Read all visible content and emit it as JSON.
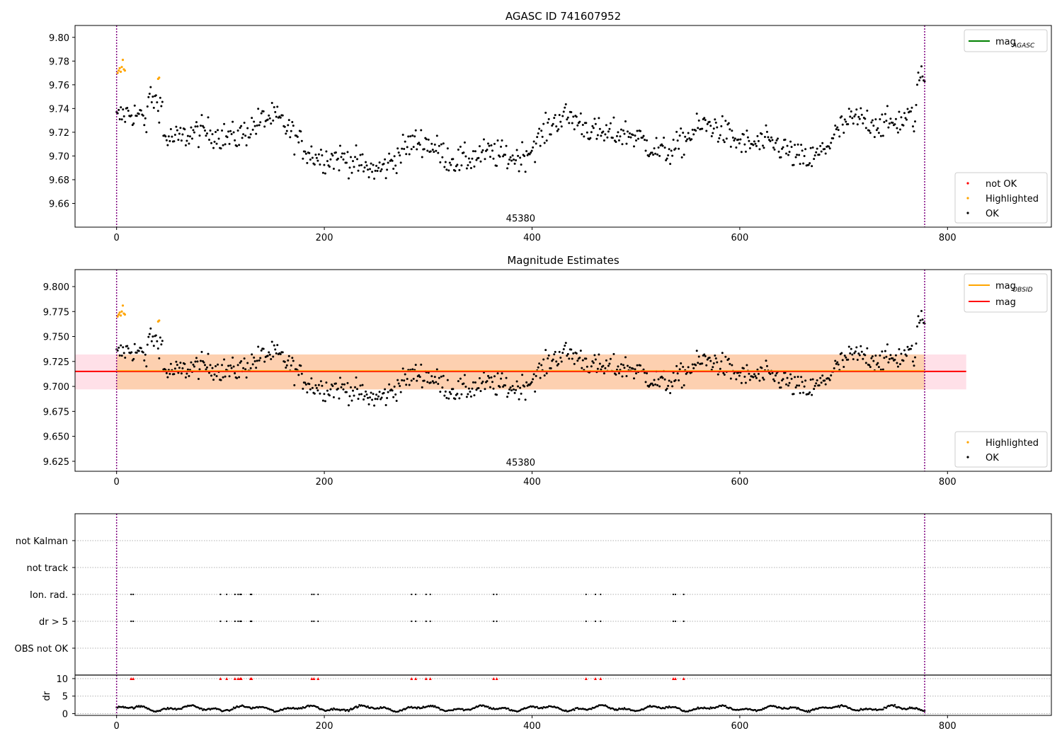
{
  "chart_data": [
    {
      "type": "scatter",
      "title": "AGASC ID 741607952",
      "xlim": [
        -40,
        900
      ],
      "ylim": [
        9.64,
        9.81
      ],
      "xticks": [
        0,
        200,
        400,
        600,
        800
      ],
      "yticks": [
        9.66,
        9.68,
        9.7,
        9.72,
        9.74,
        9.76,
        9.78,
        9.8
      ],
      "vlines": [
        0,
        778
      ],
      "annotation": {
        "text": "45380",
        "x": 389
      },
      "legend_lines": [
        {
          "label": "mag",
          "sub": "AGASC",
          "color": "#008000"
        }
      ],
      "legend_points": [
        {
          "label": "not OK",
          "color": "#ff0000"
        },
        {
          "label": "Highlighted",
          "color": "#ffa500"
        },
        {
          "label": "OK",
          "color": "#000000"
        }
      ],
      "series": [
        {
          "label": "OK",
          "color": "#000000",
          "style": "points",
          "x0": 0,
          "x1": 778,
          "mean": 9.714,
          "amp": 0.028,
          "noise": 0.012,
          "count": 760
        },
        {
          "label": "Highlighted",
          "color": "#ffa500",
          "style": "points",
          "x": [
            1,
            2,
            3,
            4,
            5,
            6,
            7,
            8,
            40,
            41
          ],
          "y": [
            9.77,
            9.772,
            9.774,
            9.771,
            9.775,
            9.781,
            9.773,
            9.772,
            9.765,
            9.766
          ]
        }
      ]
    },
    {
      "type": "scatter",
      "title": "Magnitude Estimates",
      "xlim": [
        -40,
        900
      ],
      "ylim": [
        9.615,
        9.817
      ],
      "xticks": [
        0,
        200,
        400,
        600,
        800
      ],
      "yticks": [
        9.625,
        9.65,
        9.675,
        9.7,
        9.725,
        9.75,
        9.775,
        9.8
      ],
      "vlines": [
        0,
        778
      ],
      "annotation": {
        "text": "45380",
        "x": 389
      },
      "mag": 9.715,
      "mag_band": [
        9.697,
        9.732
      ],
      "mag_band_x": [
        -40,
        818
      ],
      "mag_obsid": 9.715,
      "mag_obsid_band": [
        9.697,
        9.732
      ],
      "mag_obsid_band_x": [
        0,
        778
      ],
      "legend_lines": [
        {
          "label": "mag",
          "sub": "OBSID",
          "color": "#ffa500"
        },
        {
          "label": "mag",
          "sub": "",
          "color": "#ff0000"
        }
      ],
      "legend_points": [
        {
          "label": "Highlighted",
          "color": "#ffa500"
        },
        {
          "label": "OK",
          "color": "#000000"
        }
      ]
    },
    {
      "type": "scatter",
      "title": "",
      "ylabel": "dr",
      "xlim": [
        -40,
        900
      ],
      "xticks": [
        0,
        200,
        400,
        600,
        800
      ],
      "vlines": [
        0,
        778
      ],
      "flag_rows": [
        "not Kalman",
        "not track",
        "Ion. rad.",
        "dr > 5",
        "OBS not OK"
      ],
      "flag_x": [
        14,
        16,
        100,
        106,
        114,
        117,
        119,
        120,
        129,
        130,
        188,
        190,
        194,
        284,
        288,
        298,
        302,
        363,
        366,
        452,
        461,
        466,
        536,
        538,
        546
      ],
      "flagged_rows": [
        "Ion. rad.",
        "dr > 5"
      ],
      "dr_ylim": [
        -0.5,
        11
      ],
      "dr_yticks": [
        0,
        5,
        10
      ],
      "dr_mean": 1.5,
      "dr_marker_value": 10
    }
  ],
  "colors": {
    "ok": "#000000",
    "highlighted": "#ffa500",
    "not_ok": "#ff0000",
    "vline": "#800080",
    "band_pink": "#ffe0e8",
    "band_orange": "#fdd0b0"
  }
}
